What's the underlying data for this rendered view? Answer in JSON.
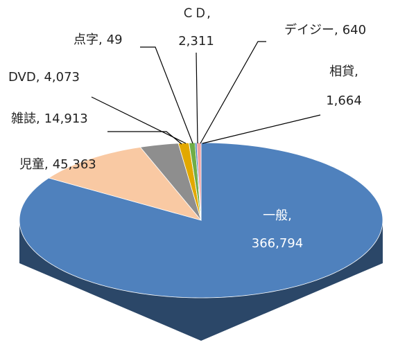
{
  "chart_data": {
    "type": "pie",
    "categories": [
      "一般",
      "児童",
      "雑誌",
      "DVD",
      "点字",
      "ＣＤ",
      "デイジー",
      "相貸"
    ],
    "values": [
      366794,
      45363,
      14913,
      4073,
      49,
      2311,
      640,
      1664
    ],
    "value_labels": [
      "366,794",
      "45,363",
      "14,913",
      "4,073",
      "49",
      "2,311",
      "640",
      "1,664"
    ],
    "label_separator": ",",
    "colors": [
      "#4f81bd",
      "#f9c9a3",
      "#8e8e8e",
      "#e2a800",
      "#5b9bd5",
      "#70ad47",
      "#2e75b6",
      "#f2a2a2"
    ]
  }
}
